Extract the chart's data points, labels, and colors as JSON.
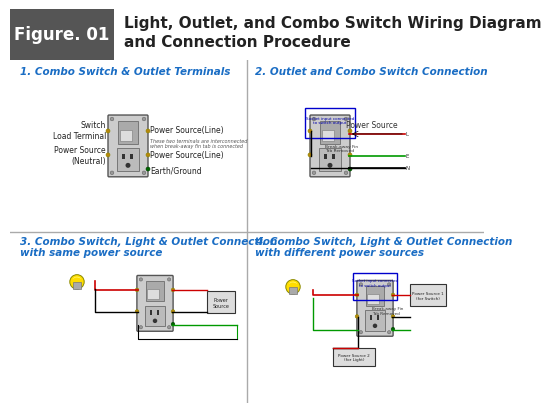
{
  "title_box_color": "#808080",
  "title_figure_text": "Figure. 01",
  "title_main_text": "Light, Outlet, and Combo Switch Wiring Diagram\nand Connection Procedure",
  "title_font_size": 11,
  "title_figure_font_size": 12,
  "background_color": "#ffffff",
  "section_title_color": "#1a6dc4",
  "section_titles": [
    "1. Combo Switch & Outlet Terminals",
    "2. Outlet and Combo Switch Connection",
    "3. Combo Switch, Light & Outlet Connection\nwith same power source",
    "4. Combo Switch, Light & Outlet Connection\nwith different power sources"
  ],
  "divider_color": "#aaaaaa",
  "annotation_font_size": 5.5,
  "section_title_font_size": 7.5
}
